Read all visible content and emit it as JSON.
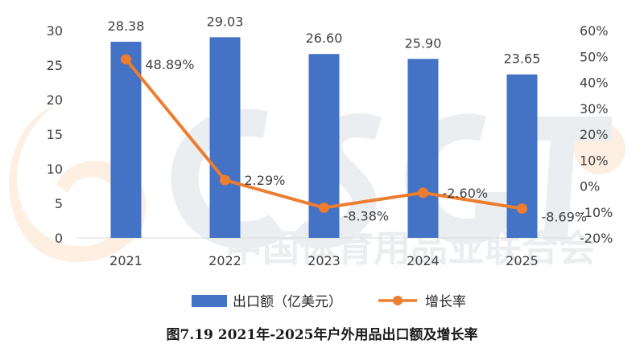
{
  "chart_data": {
    "type": "bar",
    "categories": [
      "2021",
      "2022",
      "2023",
      "2024",
      "2025"
    ],
    "series": [
      {
        "name": "出口额（亿美元）",
        "type": "bar",
        "axis": "left",
        "color": "#4472C4",
        "values": [
          28.38,
          29.03,
          26.6,
          25.9,
          23.65
        ],
        "labels": [
          "28.38",
          "29.03",
          "26.60",
          "25.90",
          "23.65"
        ]
      },
      {
        "name": "增长率",
        "type": "line",
        "axis": "right",
        "color": "#ED7D31",
        "values": [
          48.89,
          2.29,
          -8.38,
          -2.6,
          -8.69
        ],
        "labels": [
          "48.89%",
          "2.29%",
          "-8.38%",
          "-2.60%",
          "-8.69%"
        ]
      }
    ],
    "y_left": {
      "min": 0,
      "max": 30,
      "ticks": [
        "0",
        "5",
        "10",
        "15",
        "20",
        "25",
        "30"
      ]
    },
    "y_right": {
      "min": -20,
      "max": 60,
      "ticks": [
        "-20%",
        "-10%",
        "0%",
        "10%",
        "20%",
        "30%",
        "40%",
        "50%",
        "60%"
      ]
    },
    "legend_position": "bottom",
    "grid": false,
    "caption": "图7.19 2021年-2025年户外用品出口额及增长率",
    "watermark": "中国体育用品业联合会"
  }
}
